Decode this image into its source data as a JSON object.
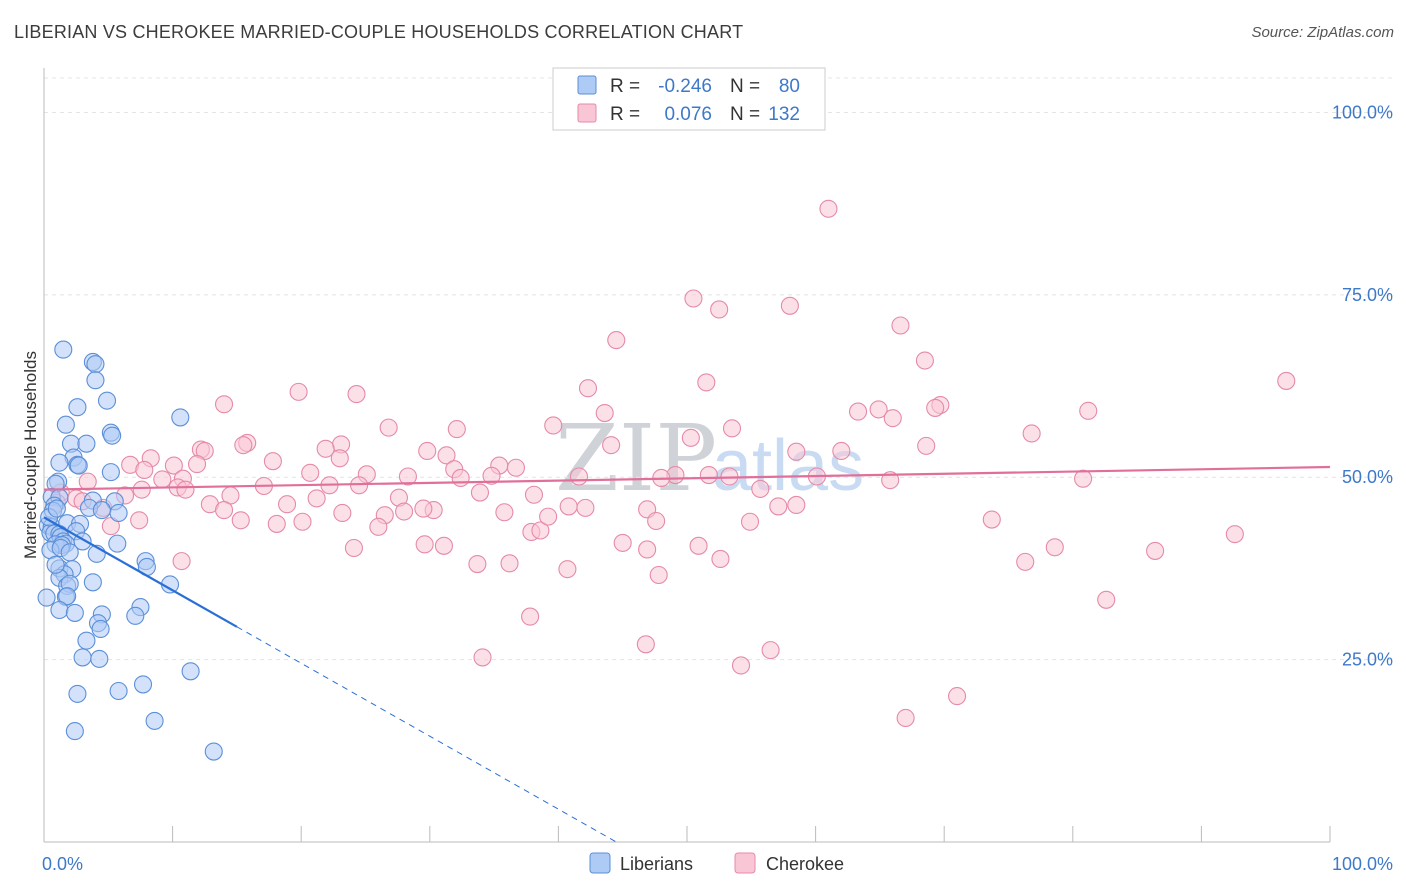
{
  "title": "LIBERIAN VS CHEROKEE MARRIED-COUPLE HOUSEHOLDS CORRELATION CHART",
  "source": "Source: ZipAtlas.com",
  "watermark": {
    "part1": "ZIP",
    "part2": "atlas"
  },
  "legend": {
    "rows": [
      {
        "r_label": "R =",
        "r_value": "-0.246",
        "n_label": "N =",
        "n_value": "80",
        "color": "#aecbf5",
        "stroke": "#5b8fd8"
      },
      {
        "r_label": "R =",
        "r_value": "0.076",
        "n_label": "N =",
        "n_value": "132",
        "color": "#f9c6d6",
        "stroke": "#e58aa9"
      }
    ]
  },
  "bottom_legend": [
    {
      "label": "Liberians",
      "color": "#aecbf5",
      "stroke": "#5b8fd8"
    },
    {
      "label": "Cherokee",
      "color": "#f9c6d6",
      "stroke": "#e58aa9"
    }
  ],
  "chart_data": {
    "type": "scatter",
    "title": "LIBERIAN VS CHEROKEE MARRIED-COUPLE HOUSEHOLDS CORRELATION CHART",
    "xlabel": "",
    "ylabel": "Married-couple Households",
    "xlim": [
      0,
      100
    ],
    "ylim": [
      0,
      105
    ],
    "x_tick_labels": [
      "0.0%",
      "100.0%"
    ],
    "y_ticks": [
      25,
      50,
      75,
      100
    ],
    "y_tick_labels": [
      "25.0%",
      "50.0%",
      "75.0%",
      "100.0%"
    ],
    "series": [
      {
        "name": "Liberians",
        "color": "#aecbf5",
        "stroke": "#5b8fd8",
        "line_color": "#2a6fd6",
        "trend": {
          "x0": 0,
          "y0": 44.5,
          "x1": 15,
          "y1": 29.5,
          "dash_to_x": 44.5,
          "dash_to_y": 0
        },
        "points": [
          [
            1.5,
            67.5
          ],
          [
            3.8,
            65.8
          ],
          [
            4.0,
            65.5
          ],
          [
            4.0,
            63.3
          ],
          [
            4.9,
            60.5
          ],
          [
            2.6,
            59.6
          ],
          [
            1.7,
            57.2
          ],
          [
            10.6,
            58.2
          ],
          [
            5.2,
            56.1
          ],
          [
            5.3,
            55.7
          ],
          [
            2.1,
            54.6
          ],
          [
            3.3,
            54.6
          ],
          [
            2.3,
            52.7
          ],
          [
            1.2,
            52.0
          ],
          [
            2.6,
            51.7
          ],
          [
            2.7,
            51.6
          ],
          [
            5.2,
            50.7
          ],
          [
            1.1,
            49.4
          ],
          [
            0.9,
            49.1
          ],
          [
            0.6,
            47.3
          ],
          [
            1.2,
            47.2
          ],
          [
            3.8,
            46.8
          ],
          [
            5.5,
            46.7
          ],
          [
            0.8,
            46.1
          ],
          [
            0.7,
            45.4
          ],
          [
            3.5,
            45.8
          ],
          [
            4.5,
            45.5
          ],
          [
            5.8,
            45.1
          ],
          [
            0.3,
            43.4
          ],
          [
            0.6,
            43.2
          ],
          [
            1.8,
            43.7
          ],
          [
            2.8,
            43.6
          ],
          [
            0.5,
            42.4
          ],
          [
            0.8,
            42.3
          ],
          [
            1.2,
            42.2
          ],
          [
            1.3,
            41.8
          ],
          [
            2.5,
            42.6
          ],
          [
            1.5,
            41.2
          ],
          [
            1.7,
            40.9
          ],
          [
            3.0,
            41.2
          ],
          [
            0.9,
            40.8
          ],
          [
            1.4,
            40.7
          ],
          [
            0.5,
            40.0
          ],
          [
            5.7,
            40.9
          ],
          [
            4.1,
            39.5
          ],
          [
            1.2,
            37.5
          ],
          [
            2.2,
            37.4
          ],
          [
            7.9,
            38.5
          ],
          [
            8.0,
            37.7
          ],
          [
            1.6,
            36.7
          ],
          [
            1.2,
            36.2
          ],
          [
            3.8,
            35.6
          ],
          [
            1.8,
            35.1
          ],
          [
            2.0,
            35.4
          ],
          [
            9.8,
            35.3
          ],
          [
            1.7,
            33.6
          ],
          [
            1.8,
            33.7
          ],
          [
            0.2,
            33.5
          ],
          [
            7.5,
            32.2
          ],
          [
            1.2,
            31.8
          ],
          [
            2.4,
            31.4
          ],
          [
            4.5,
            31.2
          ],
          [
            7.1,
            31.0
          ],
          [
            4.2,
            30.0
          ],
          [
            4.4,
            29.2
          ],
          [
            3.3,
            27.6
          ],
          [
            3.0,
            25.3
          ],
          [
            4.3,
            25.1
          ],
          [
            11.4,
            23.4
          ],
          [
            7.7,
            21.6
          ],
          [
            5.8,
            20.7
          ],
          [
            2.6,
            20.3
          ],
          [
            8.6,
            16.6
          ],
          [
            2.4,
            15.2
          ],
          [
            13.2,
            12.4
          ],
          [
            1.3,
            40.3
          ],
          [
            0.9,
            38.0
          ],
          [
            2.0,
            39.7
          ],
          [
            0.4,
            44.5
          ],
          [
            1.0,
            45.7
          ]
        ]
      },
      {
        "name": "Cherokee",
        "color": "#f9c6d6",
        "stroke": "#e58aa9",
        "line_color": "#e0709a",
        "trend": {
          "x0": 0,
          "y0": 48.3,
          "x1": 100,
          "y1": 51.4
        },
        "points": [
          [
            61.0,
            86.8
          ],
          [
            50.5,
            74.5
          ],
          [
            58.0,
            73.5
          ],
          [
            52.5,
            73.0
          ],
          [
            66.6,
            70.8
          ],
          [
            44.5,
            68.8
          ],
          [
            68.5,
            66.0
          ],
          [
            96.6,
            63.2
          ],
          [
            51.5,
            63.0
          ],
          [
            42.3,
            62.2
          ],
          [
            19.8,
            61.7
          ],
          [
            24.3,
            61.4
          ],
          [
            14.0,
            60.0
          ],
          [
            69.7,
            59.9
          ],
          [
            69.3,
            59.5
          ],
          [
            64.9,
            59.3
          ],
          [
            81.2,
            59.1
          ],
          [
            63.3,
            59.0
          ],
          [
            43.6,
            58.8
          ],
          [
            66.0,
            58.1
          ],
          [
            26.8,
            56.8
          ],
          [
            39.6,
            57.1
          ],
          [
            32.1,
            56.6
          ],
          [
            53.5,
            56.7
          ],
          [
            76.8,
            56.0
          ],
          [
            50.3,
            55.4
          ],
          [
            15.8,
            54.7
          ],
          [
            15.5,
            54.4
          ],
          [
            23.1,
            54.5
          ],
          [
            68.6,
            54.3
          ],
          [
            44.1,
            54.4
          ],
          [
            12.2,
            53.8
          ],
          [
            12.5,
            53.6
          ],
          [
            21.9,
            53.9
          ],
          [
            29.8,
            53.6
          ],
          [
            62.0,
            53.6
          ],
          [
            31.3,
            53.0
          ],
          [
            58.5,
            53.5
          ],
          [
            8.3,
            52.6
          ],
          [
            17.8,
            52.2
          ],
          [
            23.0,
            52.6
          ],
          [
            10.1,
            51.6
          ],
          [
            11.9,
            51.8
          ],
          [
            6.7,
            51.7
          ],
          [
            35.4,
            51.6
          ],
          [
            36.7,
            51.3
          ],
          [
            31.9,
            51.1
          ],
          [
            7.8,
            51.0
          ],
          [
            20.7,
            50.6
          ],
          [
            25.1,
            50.4
          ],
          [
            28.3,
            50.1
          ],
          [
            34.8,
            50.2
          ],
          [
            49.1,
            50.3
          ],
          [
            32.4,
            49.9
          ],
          [
            10.8,
            49.8
          ],
          [
            51.7,
            50.3
          ],
          [
            53.3,
            50.1
          ],
          [
            41.6,
            50.1
          ],
          [
            48.0,
            49.9
          ],
          [
            80.8,
            49.8
          ],
          [
            9.2,
            49.7
          ],
          [
            17.1,
            48.8
          ],
          [
            22.2,
            48.9
          ],
          [
            10.4,
            48.6
          ],
          [
            7.6,
            48.3
          ],
          [
            11.0,
            48.3
          ],
          [
            1.3,
            47.9
          ],
          [
            24.5,
            48.9
          ],
          [
            55.7,
            48.4
          ],
          [
            14.5,
            47.5
          ],
          [
            2.5,
            47.1
          ],
          [
            6.3,
            47.5
          ],
          [
            27.6,
            47.2
          ],
          [
            33.9,
            47.9
          ],
          [
            38.1,
            47.6
          ],
          [
            1.0,
            46.5
          ],
          [
            3.0,
            46.7
          ],
          [
            21.2,
            47.1
          ],
          [
            40.8,
            46.0
          ],
          [
            12.9,
            46.3
          ],
          [
            4.6,
            45.8
          ],
          [
            14.0,
            45.5
          ],
          [
            30.3,
            45.5
          ],
          [
            35.8,
            45.2
          ],
          [
            57.1,
            46.0
          ],
          [
            23.2,
            45.1
          ],
          [
            28.0,
            45.3
          ],
          [
            26.5,
            44.8
          ],
          [
            42.1,
            45.8
          ],
          [
            46.9,
            45.6
          ],
          [
            7.4,
            44.1
          ],
          [
            15.3,
            44.1
          ],
          [
            20.1,
            43.9
          ],
          [
            18.1,
            43.6
          ],
          [
            5.2,
            43.3
          ],
          [
            26.0,
            43.2
          ],
          [
            47.6,
            44.0
          ],
          [
            73.7,
            44.2
          ],
          [
            54.9,
            43.9
          ],
          [
            37.9,
            42.5
          ],
          [
            38.6,
            42.7
          ],
          [
            24.1,
            40.3
          ],
          [
            46.9,
            40.1
          ],
          [
            50.9,
            40.6
          ],
          [
            29.6,
            40.8
          ],
          [
            31.1,
            40.6
          ],
          [
            78.6,
            40.4
          ],
          [
            92.6,
            42.2
          ],
          [
            52.6,
            38.8
          ],
          [
            10.7,
            38.5
          ],
          [
            33.7,
            38.1
          ],
          [
            36.2,
            38.2
          ],
          [
            40.7,
            37.4
          ],
          [
            76.3,
            38.4
          ],
          [
            47.8,
            36.6
          ],
          [
            82.6,
            33.2
          ],
          [
            37.8,
            30.9
          ],
          [
            46.8,
            27.1
          ],
          [
            56.5,
            26.3
          ],
          [
            34.1,
            25.3
          ],
          [
            54.2,
            24.2
          ],
          [
            71.0,
            20.0
          ],
          [
            67.0,
            17.0
          ],
          [
            86.4,
            39.9
          ],
          [
            65.8,
            49.6
          ],
          [
            58.5,
            46.2
          ],
          [
            3.4,
            49.4
          ],
          [
            18.9,
            46.3
          ],
          [
            29.5,
            45.7
          ],
          [
            39.2,
            44.6
          ],
          [
            60.1,
            50.1
          ],
          [
            45.0,
            41.0
          ]
        ]
      }
    ]
  }
}
